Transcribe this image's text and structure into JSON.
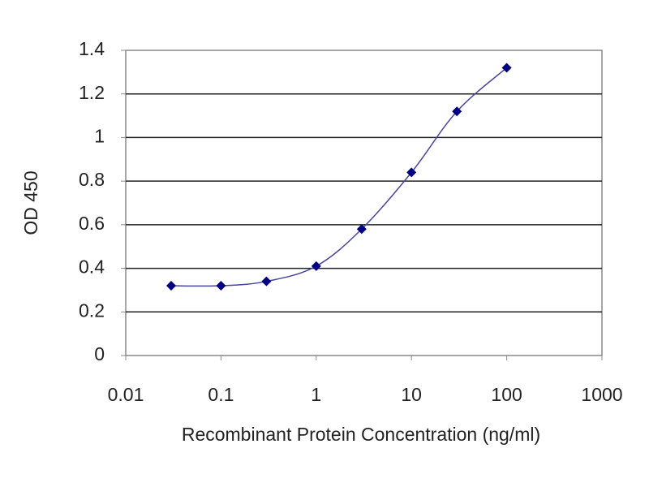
{
  "chart_data": {
    "type": "line",
    "x_label": "Recombinant Protein Concentration (ng/ml)",
    "y_label": "OD 450",
    "x": [
      0.03,
      0.1,
      0.3,
      1,
      3,
      10,
      30,
      100
    ],
    "series": [
      {
        "name": "OD 450",
        "color": "#000080",
        "line_color": "#4646a0",
        "values": [
          0.32,
          0.32,
          0.34,
          0.41,
          0.58,
          0.84,
          1.12,
          1.32
        ]
      }
    ],
    "xscale": "log",
    "xlim": [
      0.01,
      1000
    ],
    "xticks": [
      0.01,
      0.1,
      1,
      10,
      100,
      1000
    ],
    "ylim": [
      0,
      1.4
    ],
    "yticks": [
      0,
      0.2,
      0.4,
      0.6,
      0.8,
      1,
      1.2,
      1.4
    ],
    "grid": true
  }
}
